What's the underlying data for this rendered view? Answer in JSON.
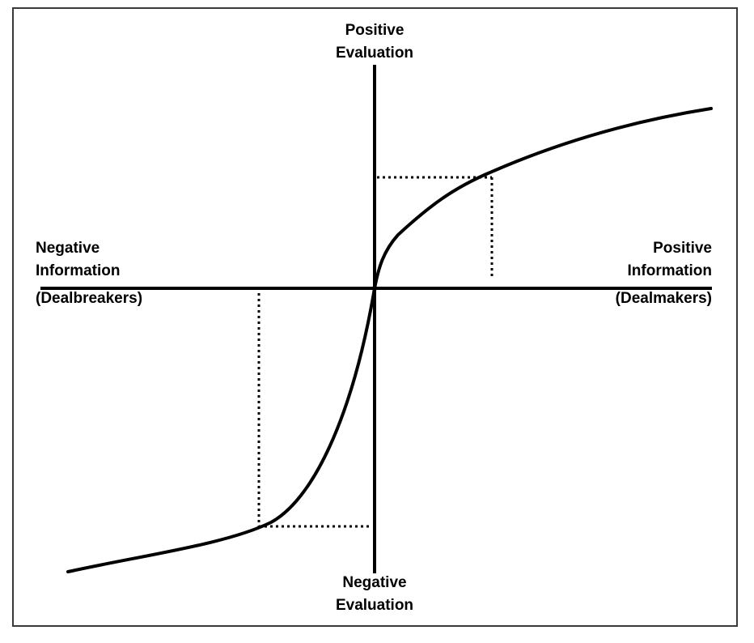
{
  "colors": {
    "ink": "#000000",
    "frame": "#3a3a3a",
    "background": "#ffffff"
  },
  "labels": {
    "top": [
      "Positive",
      "Evaluation"
    ],
    "bottom": [
      "Negative",
      "Evaluation"
    ],
    "left": [
      "Negative",
      "Information",
      "(Dealbreakers)"
    ],
    "right": [
      "Positive",
      "Information",
      "(Dealmakers)"
    ]
  }
}
